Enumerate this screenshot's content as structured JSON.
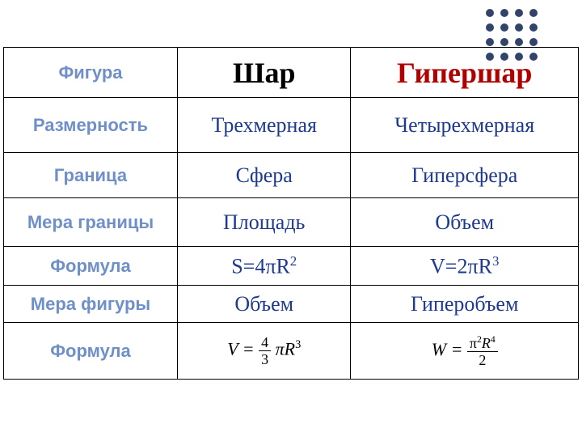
{
  "dots": {
    "rows": 4,
    "cols": 4,
    "color": "#33446b",
    "radius": 5,
    "spacing": 18
  },
  "table": {
    "border_color": "#000000",
    "header_color": "#6f8fc9",
    "body_color": "#1e3a8f",
    "red_color": "#b00000",
    "rows": [
      {
        "h": "Фигура",
        "c1": "Шар",
        "c2": "Гипершар",
        "style": "title"
      },
      {
        "h": "Размерность",
        "c1": "Трехмерная",
        "c2": "Четырехмерная",
        "style": "body"
      },
      {
        "h": "Граница",
        "c1": "Сфера",
        "c2": "Гиперсфера",
        "style": "body"
      },
      {
        "h": "Мера границы",
        "c1": "Площадь",
        "c2": "Объем",
        "style": "body"
      },
      {
        "h": "Формула",
        "c1": "S=4πR",
        "c1_sup": "2",
        "c2": "V=2πR",
        "c2_sup": "3",
        "style": "body"
      },
      {
        "h": "Мера фигуры",
        "c1": "Объем",
        "c2": "Гиперобъем",
        "style": "body"
      },
      {
        "h": "Формула",
        "c1_formula": {
          "lhs": "V",
          "num": "4",
          "den": "3",
          "rhs": "πR",
          "sup": "3"
        },
        "c2_formula": {
          "lhs": "W",
          "num_html": "π<sup>2</sup><i>R</i><sup>4</sup>",
          "den": "2"
        },
        "style": "formula"
      }
    ]
  }
}
